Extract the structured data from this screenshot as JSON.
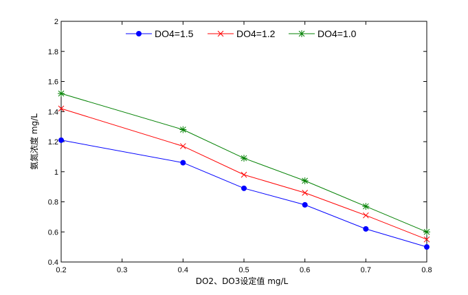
{
  "chart_data": {
    "type": "line",
    "title": "",
    "xlabel": "DO2、DO3设定值 mg/L",
    "ylabel": "氨氮浓度 mg/L",
    "xlim": [
      0.2,
      0.8
    ],
    "ylim": [
      0.4,
      2
    ],
    "xticks": [
      "0.2",
      "0.3",
      "0.4",
      "0.5",
      "0.6",
      "0.7",
      "0.8"
    ],
    "yticks": [
      "0.4",
      "0.6",
      "0.8",
      "1",
      "1.2",
      "1.4",
      "1.6",
      "1.8",
      "2"
    ],
    "grid": false,
    "legend_position": "top",
    "x": [
      0.2,
      0.4,
      0.5,
      0.6,
      0.7,
      0.8
    ],
    "series": [
      {
        "name": "DO4=1.5",
        "color": "#0000ff",
        "marker": "dot",
        "values": [
          1.21,
          1.06,
          0.89,
          0.78,
          0.62,
          0.5
        ]
      },
      {
        "name": "DO4=1.2",
        "color": "#ff0000",
        "marker": "x",
        "values": [
          1.42,
          1.17,
          0.98,
          0.86,
          0.71,
          0.55
        ]
      },
      {
        "name": "DO4=1.0",
        "color": "#008000",
        "marker": "star",
        "values": [
          1.52,
          1.28,
          1.09,
          0.94,
          0.77,
          0.6
        ]
      }
    ]
  }
}
